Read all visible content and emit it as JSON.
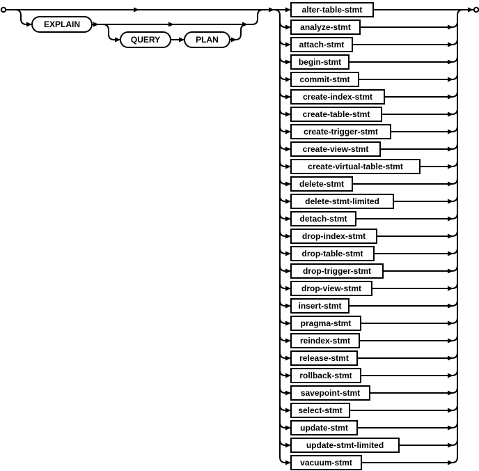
{
  "prefix": {
    "explain": "EXPLAIN",
    "query": "QUERY",
    "plan": "PLAN"
  },
  "statements": [
    "alter-table-stmt",
    "analyze-stmt",
    "attach-stmt",
    "begin-stmt",
    "commit-stmt",
    "create-index-stmt",
    "create-table-stmt",
    "create-trigger-stmt",
    "create-view-stmt",
    "create-virtual-table-stmt",
    "delete-stmt",
    "delete-stmt-limited",
    "detach-stmt",
    "drop-index-stmt",
    "drop-table-stmt",
    "drop-trigger-stmt",
    "drop-view-stmt",
    "insert-stmt",
    "pragma-stmt",
    "reindex-stmt",
    "release-stmt",
    "rollback-stmt",
    "savepoint-stmt",
    "select-stmt",
    "update-stmt",
    "update-stmt-limited",
    "vacuum-stmt"
  ]
}
